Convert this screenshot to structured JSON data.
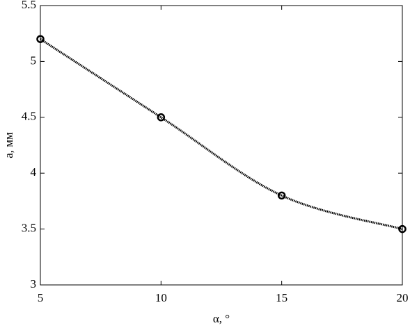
{
  "chart_data": {
    "type": "line",
    "x_label": "α, °",
    "y_label": "a, мм",
    "x": [
      5,
      10,
      15,
      20
    ],
    "series": [
      {
        "color": "#000000",
        "values": [
          5.2,
          4.5,
          3.8,
          3.5
        ]
      }
    ],
    "xlim": [
      5,
      20
    ],
    "xticks": [
      5,
      10,
      15,
      20
    ],
    "ylim": [
      3,
      5.5
    ],
    "yticks": [
      3,
      3.5,
      4,
      4.5,
      5,
      5.5
    ],
    "grid": false
  }
}
